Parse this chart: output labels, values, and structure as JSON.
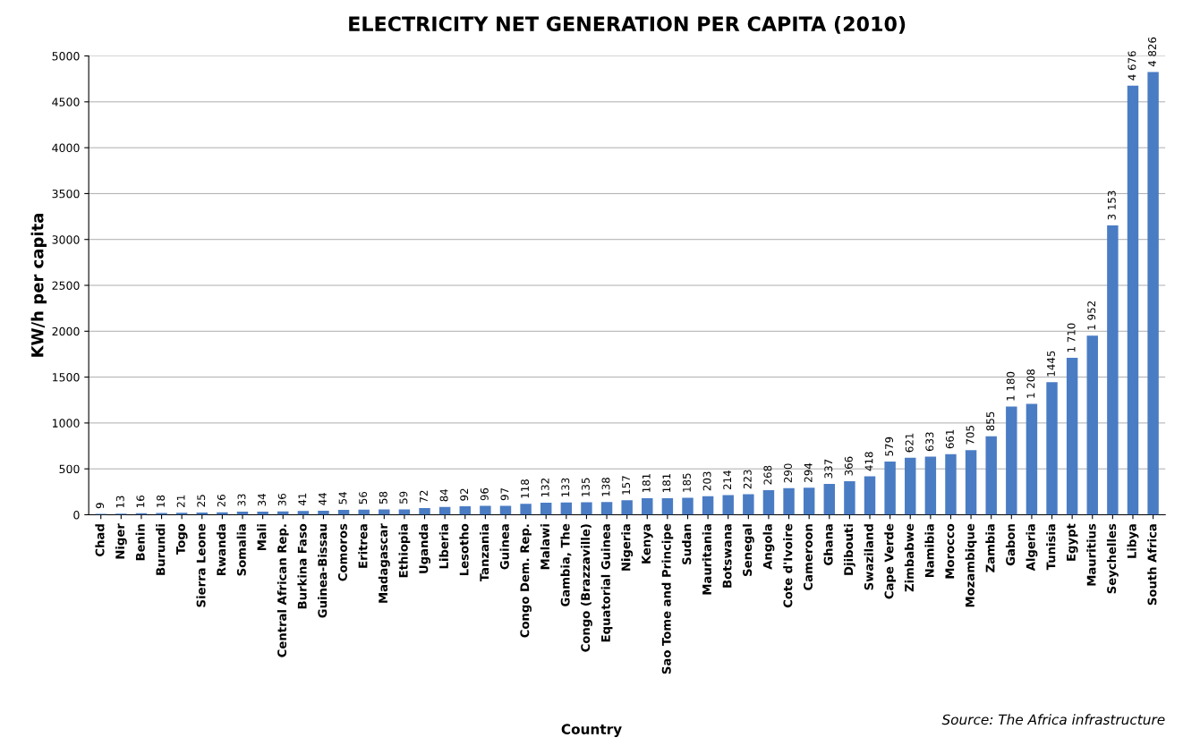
{
  "chart_data": {
    "type": "bar",
    "title": "ELECTRICITY NET GENERATION PER CAPITA (2010)",
    "xlabel": "Country",
    "ylabel": "KW/h per capita",
    "categories": [
      "Chad",
      "Niger",
      "Benin",
      "Burundi",
      "Togo",
      "Sierra Leone",
      "Rwanda",
      "Somalia",
      "Mali",
      "Central African Rep.",
      "Burkina Faso",
      "Guinea-Bissau",
      "Comoros",
      "Eritrea",
      "Madagascar",
      "Ethiopia",
      "Uganda",
      "Liberia",
      "Lesotho",
      "Tanzania",
      "Guinea",
      "Congo Dem. Rep.",
      "Malawi",
      "Gambia, The",
      "Congo (Brazzaville)",
      "Equatorial Guinea",
      "Nigeria",
      "Kenya",
      "Sao Tome and Principe",
      "Sudan",
      "Mauritania",
      "Botswana",
      "Senegal",
      "Angola",
      "Cote d'Ivoire",
      "Cameroon",
      "Ghana",
      "Djibouti",
      "Swaziland",
      "Cape Verde",
      "Zimbabwe",
      "Namibia",
      "Morocco",
      "Mozambique",
      "Zambia",
      "Gabon",
      "Algeria",
      "Tunisia",
      "Egypt",
      "Mauritius",
      "Seychelles",
      "Libya",
      "South Africa"
    ],
    "values": [
      9,
      13,
      16,
      18,
      21,
      25,
      26,
      33,
      34,
      36,
      41,
      44,
      54,
      56,
      58,
      59,
      72,
      84,
      92,
      96,
      97,
      118,
      132,
      133,
      135,
      138,
      157,
      181,
      181,
      185,
      203,
      214,
      223,
      268,
      290,
      294,
      337,
      366,
      418,
      579,
      621,
      633,
      661,
      705,
      855,
      1180,
      1208,
      1445,
      1710,
      1952,
      3153,
      4676,
      4826
    ],
    "value_labels": [
      "9",
      "13",
      "16",
      "18",
      "21",
      "25",
      "26",
      "33",
      "34",
      "36",
      "41",
      "44",
      "54",
      "56",
      "58",
      "59",
      "72",
      "84",
      "92",
      "96",
      "97",
      "118",
      "132",
      "133",
      "135",
      "138",
      "157",
      "181",
      "181",
      "185",
      "203",
      "214",
      "223",
      "268",
      "290",
      "294",
      "337",
      "366",
      "418",
      "579",
      "621",
      "633",
      "661",
      "705",
      "855",
      "1 180",
      "1 208",
      "1445",
      "1 710",
      "1 952",
      "3 153",
      "4 676",
      "4 826"
    ],
    "color": "#4a7cc4",
    "ylim": [
      0,
      5000
    ],
    "yticks": [
      0,
      500,
      1000,
      1500,
      2000,
      2500,
      3000,
      3500,
      4000,
      4500,
      5000
    ],
    "grid": "y",
    "annotations": [
      "Source: The Africa infrastructure"
    ]
  }
}
